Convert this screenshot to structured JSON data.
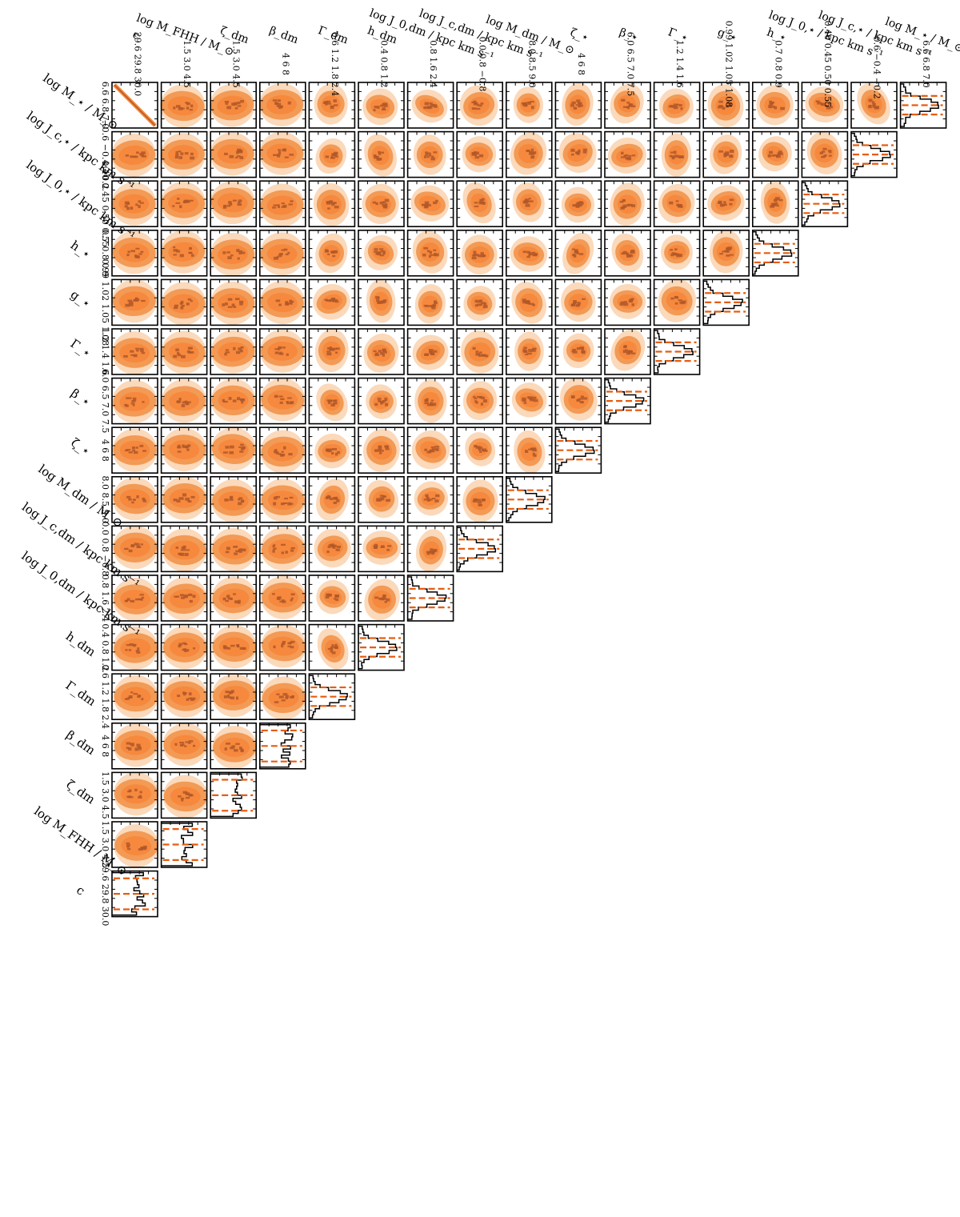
{
  "chart_data": {
    "type": "corner",
    "colors": {
      "contour_outer": "#fbd9bb",
      "contour_mid": "#f39a55",
      "contour_inner": "#f6893d",
      "contour_core": "#b0582a",
      "quantile_line": "#e65c0f",
      "frame": "#000000",
      "histogram": "#000000"
    },
    "parameters": [
      {
        "key": "c",
        "label": "c",
        "ticks": [
          "29.6",
          "29.8",
          "30.0"
        ]
      },
      {
        "key": "log_M_FHH",
        "label": "log M_FHH / M_⊙",
        "ticks": [
          "1.5",
          "3.0",
          "4.5"
        ]
      },
      {
        "key": "zeta_dm",
        "label": "ζ_dm",
        "ticks": [
          "1.5",
          "3.0",
          "4.5"
        ]
      },
      {
        "key": "beta_dm",
        "label": "β_dm",
        "ticks": [
          "4",
          "6",
          "8"
        ]
      },
      {
        "key": "Gamma_dm",
        "label": "Γ_dm",
        "ticks": [
          "0.6",
          "1.2",
          "1.8",
          "2.4"
        ]
      },
      {
        "key": "h_dm",
        "label": "h_dm",
        "ticks": [
          "0.4",
          "0.8",
          "1.2"
        ]
      },
      {
        "key": "log_J0_dm",
        "label": "log J_0,dm / kpc km s⁻¹",
        "ticks": [
          "0.8",
          "1.6",
          "2.4"
        ]
      },
      {
        "key": "log_Jc_dm",
        "label": "log J_c,dm / kpc km s⁻¹",
        "ticks": [
          "0.0",
          "0.8",
          "−0.8"
        ]
      },
      {
        "key": "log_M_dm",
        "label": "log M_dm / M_⊙",
        "ticks": [
          "8.0",
          "8.5",
          "9.0"
        ]
      },
      {
        "key": "zeta_star",
        "label": "ζ_⋆",
        "ticks": [
          "4",
          "6",
          "8"
        ]
      },
      {
        "key": "beta_star",
        "label": "β_⋆",
        "ticks": [
          "6.0",
          "6.5",
          "7.0",
          "7.5"
        ]
      },
      {
        "key": "Gamma_star",
        "label": "Γ_⋆",
        "ticks": [
          "1.2",
          "1.4",
          "1.6"
        ]
      },
      {
        "key": "g_star",
        "label": "g_⋆",
        "ticks": [
          "0.99",
          "1.02",
          "1.05",
          "1.08"
        ]
      },
      {
        "key": "h_star",
        "label": "h_⋆",
        "ticks": [
          "0.7",
          "0.8",
          "0.9"
        ]
      },
      {
        "key": "log_J0_star",
        "label": "log J_0,⋆ / kpc km s⁻¹",
        "ticks": [
          "0.40",
          "0.45",
          "0.50",
          "0.55"
        ]
      },
      {
        "key": "log_Jc_star",
        "label": "log J_c,⋆ / kpc km s⁻¹",
        "ticks": [
          "−0.6",
          "−0.4",
          "−0.2"
        ]
      },
      {
        "key": "log_M_star",
        "label": "log M_⋆ / M_⊙",
        "ticks": [
          "6.6",
          "6.8",
          "7.0"
        ]
      }
    ],
    "row_order": [
      "log_M_star",
      "log_Jc_star",
      "log_J0_star",
      "h_star",
      "g_star",
      "Gamma_star",
      "beta_star",
      "zeta_star",
      "log_M_dm",
      "log_Jc_dm",
      "log_J0_dm",
      "h_dm",
      "Gamma_dm",
      "beta_dm",
      "zeta_dm",
      "log_M_FHH",
      "c"
    ],
    "quantiles": [
      0.16,
      0.5,
      0.84
    ]
  }
}
